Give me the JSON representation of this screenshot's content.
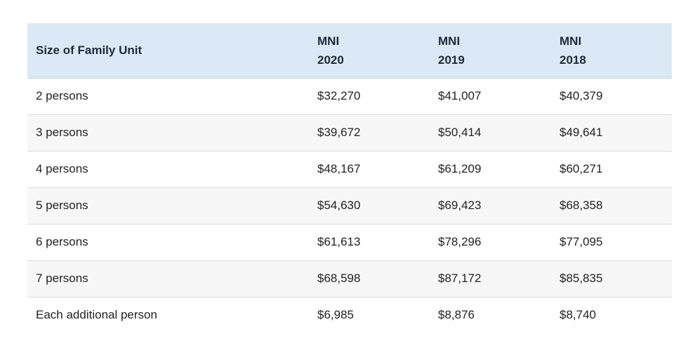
{
  "table": {
    "headers": [
      {
        "lines": [
          "Size of Family Unit"
        ]
      },
      {
        "lines": [
          "MNI",
          "2020"
        ]
      },
      {
        "lines": [
          "MNI",
          "2019"
        ]
      },
      {
        "lines": [
          "MNI",
          "2018"
        ]
      }
    ],
    "rows": [
      [
        "2 persons",
        "$32,270",
        "$41,007",
        "$40,379"
      ],
      [
        "3 persons",
        "$39,672",
        "$50,414",
        "$49,641"
      ],
      [
        "4 persons",
        "$48,167",
        "$61,209",
        "$60,271"
      ],
      [
        "5 persons",
        "$54,630",
        "$69,423",
        "$68,358"
      ],
      [
        "6 persons",
        "$61,613",
        "$78,296",
        "$77,095"
      ],
      [
        "7 persons",
        "$68,598",
        "$87,172",
        "$85,835"
      ],
      [
        "Each additional person",
        "$6,985",
        "$8,876",
        "$8,740"
      ]
    ]
  },
  "colors": {
    "header_background": "#dbe9f6",
    "striped_row_background": "#f7f7f7",
    "row_divider": "#dcdcdc"
  }
}
